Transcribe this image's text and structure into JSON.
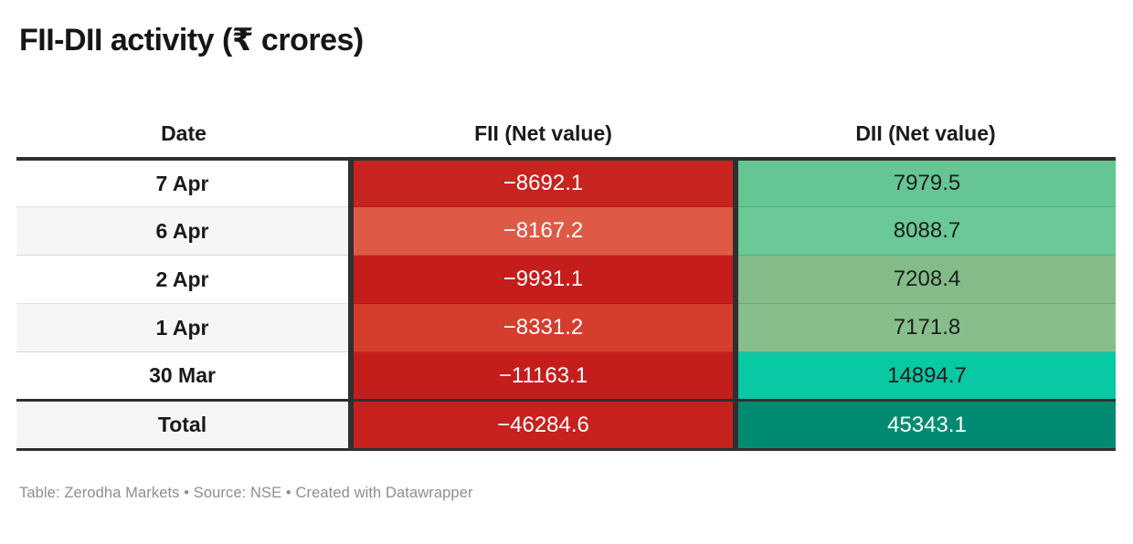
{
  "title": "FII-DII activity (₹ crores)",
  "footer": "Table: Zerodha Markets • Source: NSE • Created with Datawrapper",
  "colors": {
    "dark_border": "#2f2f2f",
    "zebra_row": "#f6f6f6",
    "footer_text": "#8e8e8e"
  },
  "table": {
    "columns": [
      {
        "label": "Date"
      },
      {
        "label": "FII (Net value)"
      },
      {
        "label": "DII (Net value)"
      }
    ],
    "rows": [
      {
        "date": "7 Apr",
        "fii": {
          "text": "−8692.1",
          "bg": "#c7231f",
          "fg": "#ffffff"
        },
        "dii": {
          "text": "7979.5",
          "bg": "#66c693",
          "fg": "#1d1d1d"
        }
      },
      {
        "date": "6 Apr",
        "fii": {
          "text": "−8167.2",
          "bg": "#de5a46",
          "fg": "#ffffff"
        },
        "dii": {
          "text": "8088.7",
          "bg": "#6ac996",
          "fg": "#1d1d1d"
        }
      },
      {
        "date": "2 Apr",
        "fii": {
          "text": "−9931.1",
          "bg": "#c41d1b",
          "fg": "#ffffff"
        },
        "dii": {
          "text": "7208.4",
          "bg": "#83bc89",
          "fg": "#1d1d1d"
        }
      },
      {
        "date": "1 Apr",
        "fii": {
          "text": "−8331.2",
          "bg": "#d53d2d",
          "fg": "#ffffff"
        },
        "dii": {
          "text": "7171.8",
          "bg": "#86be8c",
          "fg": "#1d1d1d"
        }
      },
      {
        "date": "30 Mar",
        "fii": {
          "text": "−11163.1",
          "bg": "#c41e1c",
          "fg": "#ffffff"
        },
        "dii": {
          "text": "14894.7",
          "bg": "#07c9a3",
          "fg": "#1d1d1d"
        }
      }
    ],
    "total": {
      "label": "Total",
      "fii": {
        "text": "−46284.6",
        "bg": "#c6211e",
        "fg": "#ffffff"
      },
      "dii": {
        "text": "45343.1",
        "bg": "#008a72",
        "fg": "#ffffff"
      }
    }
  },
  "chart_data": {
    "type": "table",
    "title": "FII-DII activity (₹ crores)",
    "columns": [
      "Date",
      "FII (Net value)",
      "DII (Net value)"
    ],
    "rows": [
      [
        "7 Apr",
        -8692.1,
        7979.5
      ],
      [
        "6 Apr",
        -8167.2,
        8088.7
      ],
      [
        "2 Apr",
        -9931.1,
        7208.4
      ],
      [
        "1 Apr",
        -8331.2,
        7171.8
      ],
      [
        "30 Mar",
        -11163.1,
        14894.7
      ],
      [
        "Total",
        -46284.6,
        45343.1
      ]
    ],
    "layout_hints": "heatmap-colored cells: shades of red for negative FII values, shades of green/teal for positive DII values; zebra striping on Date column; bold total row separated by dark rules"
  }
}
